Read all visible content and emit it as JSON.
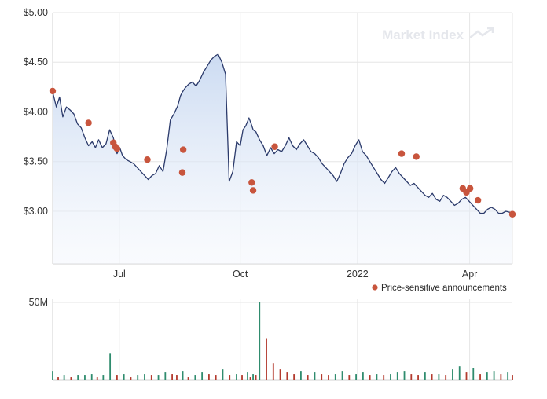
{
  "watermark": "Market Index",
  "chart_data": {
    "type": "line",
    "price_axis": {
      "tick_labels": [
        "$5.00",
        "$4.50",
        "$4.00",
        "$3.50",
        "$3.00"
      ],
      "tick_values": [
        5.0,
        4.5,
        4.0,
        3.5,
        3.0
      ],
      "ylim": [
        2.47,
        5.0
      ]
    },
    "x_axis": {
      "tick_labels": [
        "Jul",
        "Oct",
        "2022",
        "Apr"
      ],
      "tick_values": [
        0.145,
        0.408,
        0.663,
        0.907
      ],
      "xlim": [
        0,
        1
      ]
    },
    "grid": true,
    "legend": {
      "label": "Price-sensitive announcements",
      "placement": "bottom-right"
    },
    "colors": {
      "line": "#2b3a6b",
      "area_top": "#c9d9f1",
      "marker": "#c8553d",
      "grid": "#e6e6e6",
      "volume_red": "#b33a2e",
      "volume_green": "#2f8c6e"
    },
    "price_series": {
      "x": [
        0.0,
        0.008,
        0.015,
        0.022,
        0.03,
        0.038,
        0.046,
        0.054,
        0.062,
        0.07,
        0.078,
        0.086,
        0.093,
        0.1,
        0.108,
        0.116,
        0.124,
        0.132,
        0.14,
        0.146,
        0.152,
        0.16,
        0.168,
        0.176,
        0.184,
        0.192,
        0.2,
        0.208,
        0.216,
        0.224,
        0.232,
        0.24,
        0.248,
        0.256,
        0.264,
        0.272,
        0.278,
        0.282,
        0.288,
        0.296,
        0.304,
        0.312,
        0.32,
        0.328,
        0.336,
        0.344,
        0.352,
        0.36,
        0.368,
        0.376,
        0.384,
        0.392,
        0.4,
        0.408,
        0.414,
        0.42,
        0.427,
        0.432,
        0.436,
        0.442,
        0.45,
        0.458,
        0.466,
        0.474,
        0.482,
        0.49,
        0.498,
        0.506,
        0.514,
        0.522,
        0.53,
        0.538,
        0.546,
        0.554,
        0.562,
        0.57,
        0.578,
        0.586,
        0.594,
        0.602,
        0.61,
        0.618,
        0.626,
        0.634,
        0.642,
        0.65,
        0.658,
        0.666,
        0.674,
        0.682,
        0.69,
        0.698,
        0.706,
        0.714,
        0.722,
        0.73,
        0.738,
        0.746,
        0.754,
        0.762,
        0.77,
        0.778,
        0.786,
        0.794,
        0.802,
        0.81,
        0.818,
        0.826,
        0.834,
        0.842,
        0.85,
        0.858,
        0.866,
        0.874,
        0.882,
        0.89,
        0.898,
        0.906,
        0.914,
        0.922,
        0.93,
        0.938,
        0.946,
        0.954,
        0.962,
        0.97,
        0.978,
        0.986,
        0.994,
        1.0
      ],
      "y": [
        4.2,
        4.05,
        4.15,
        3.95,
        4.05,
        4.02,
        3.98,
        3.88,
        3.84,
        3.74,
        3.66,
        3.7,
        3.64,
        3.72,
        3.64,
        3.68,
        3.82,
        3.74,
        3.58,
        3.64,
        3.56,
        3.52,
        3.5,
        3.48,
        3.44,
        3.4,
        3.36,
        3.32,
        3.36,
        3.38,
        3.46,
        3.4,
        3.62,
        3.92,
        3.98,
        4.06,
        4.16,
        4.2,
        4.24,
        4.28,
        4.3,
        4.26,
        4.32,
        4.4,
        4.46,
        4.52,
        4.56,
        4.58,
        4.5,
        4.38,
        3.3,
        3.4,
        3.7,
        3.66,
        3.82,
        3.86,
        3.94,
        3.88,
        3.82,
        3.8,
        3.72,
        3.66,
        3.56,
        3.64,
        3.58,
        3.62,
        3.6,
        3.66,
        3.74,
        3.66,
        3.62,
        3.68,
        3.72,
        3.66,
        3.6,
        3.58,
        3.54,
        3.48,
        3.44,
        3.4,
        3.36,
        3.3,
        3.38,
        3.48,
        3.54,
        3.58,
        3.66,
        3.72,
        3.6,
        3.56,
        3.5,
        3.44,
        3.38,
        3.32,
        3.28,
        3.34,
        3.4,
        3.44,
        3.38,
        3.34,
        3.3,
        3.26,
        3.28,
        3.24,
        3.2,
        3.16,
        3.14,
        3.18,
        3.12,
        3.1,
        3.16,
        3.14,
        3.1,
        3.06,
        3.08,
        3.12,
        3.14,
        3.1,
        3.06,
        3.02,
        2.98,
        2.98,
        3.02,
        3.04,
        3.02,
        2.98,
        2.98,
        3.0,
        2.99,
        2.98
      ],
      "ranges_note": "values estimated from gridlines"
    },
    "announcements": [
      {
        "x": 0.0,
        "y": 4.21
      },
      {
        "x": 0.078,
        "y": 3.89
      },
      {
        "x": 0.132,
        "y": 3.69
      },
      {
        "x": 0.136,
        "y": 3.65
      },
      {
        "x": 0.14,
        "y": 3.63
      },
      {
        "x": 0.206,
        "y": 3.52
      },
      {
        "x": 0.282,
        "y": 3.39
      },
      {
        "x": 0.284,
        "y": 3.62
      },
      {
        "x": 0.433,
        "y": 3.29
      },
      {
        "x": 0.436,
        "y": 3.21
      },
      {
        "x": 0.483,
        "y": 3.65
      },
      {
        "x": 0.759,
        "y": 3.58
      },
      {
        "x": 0.791,
        "y": 3.55
      },
      {
        "x": 0.892,
        "y": 3.23
      },
      {
        "x": 0.9,
        "y": 3.19
      },
      {
        "x": 0.908,
        "y": 3.23
      },
      {
        "x": 0.925,
        "y": 3.11
      },
      {
        "x": 1.0,
        "y": 2.97
      }
    ],
    "volume_axis": {
      "tick_labels": [
        "50M"
      ],
      "tick_values": [
        50
      ],
      "ylim": [
        0,
        52
      ]
    },
    "volume_series": {
      "x": [
        0.0,
        0.012,
        0.025,
        0.04,
        0.055,
        0.07,
        0.085,
        0.097,
        0.11,
        0.125,
        0.14,
        0.155,
        0.17,
        0.185,
        0.2,
        0.215,
        0.23,
        0.245,
        0.26,
        0.27,
        0.283,
        0.295,
        0.31,
        0.325,
        0.34,
        0.355,
        0.37,
        0.385,
        0.4,
        0.412,
        0.424,
        0.43,
        0.436,
        0.442,
        0.45,
        0.465,
        0.48,
        0.495,
        0.51,
        0.525,
        0.54,
        0.555,
        0.57,
        0.585,
        0.6,
        0.615,
        0.63,
        0.645,
        0.66,
        0.675,
        0.69,
        0.705,
        0.72,
        0.735,
        0.75,
        0.765,
        0.78,
        0.795,
        0.81,
        0.825,
        0.84,
        0.855,
        0.87,
        0.885,
        0.9,
        0.915,
        0.93,
        0.945,
        0.96,
        0.975,
        0.99,
        1.0
      ],
      "values": [
        6,
        2,
        3,
        2,
        3,
        3,
        4,
        2,
        3,
        17,
        3,
        4,
        2,
        3,
        4,
        3,
        3,
        5,
        4,
        3,
        6,
        2,
        3,
        5,
        4,
        3,
        7,
        3,
        4,
        3,
        5,
        2,
        4,
        3,
        50,
        27,
        11,
        7,
        5,
        4,
        6,
        3,
        5,
        4,
        3,
        4,
        6,
        3,
        4,
        5,
        3,
        4,
        3,
        4,
        5,
        6,
        4,
        3,
        5,
        4,
        4,
        3,
        7,
        9,
        5,
        8,
        4,
        5,
        6,
        4,
        5,
        3
      ]
    }
  }
}
